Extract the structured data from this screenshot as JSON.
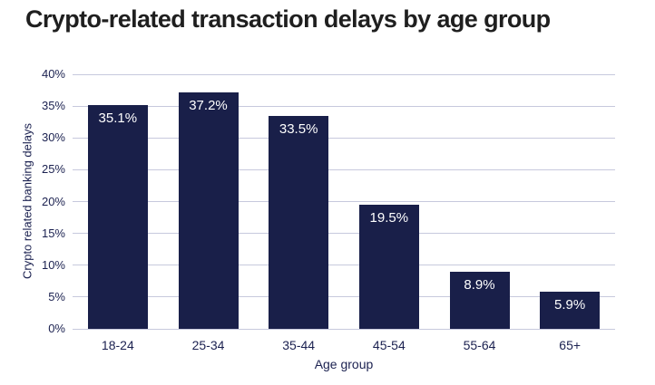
{
  "title": "Crypto-related transaction delays by age group",
  "chart_data": {
    "type": "bar",
    "title": "Crypto-related transaction delays by age group",
    "categories": [
      "18-24",
      "25-34",
      "35-44",
      "45-54",
      "55-64",
      "65+"
    ],
    "values": [
      35.1,
      37.2,
      33.5,
      19.5,
      8.9,
      5.9
    ],
    "bar_labels": [
      "35.1%",
      "37.2%",
      "33.5%",
      "19.5%",
      "8.9%",
      "5.9%"
    ],
    "xlabel": "Age group",
    "ylabel": "Crypto related banking delays",
    "ylim": [
      0,
      40
    ],
    "yticks": [
      0,
      5,
      10,
      15,
      20,
      25,
      30,
      35,
      40
    ],
    "ytick_labels": [
      "0%",
      "5%",
      "10%",
      "15%",
      "20%",
      "25%",
      "30%",
      "35%",
      "40%"
    ],
    "grid": "horizontal",
    "legend": "none",
    "colors": {
      "bar": "#191f49",
      "bar_label": "#ffffff",
      "axis_text": "#1b2150",
      "gridline": "#c7c9dd",
      "title": "#1f1f1f",
      "background": "#ffffff"
    }
  }
}
